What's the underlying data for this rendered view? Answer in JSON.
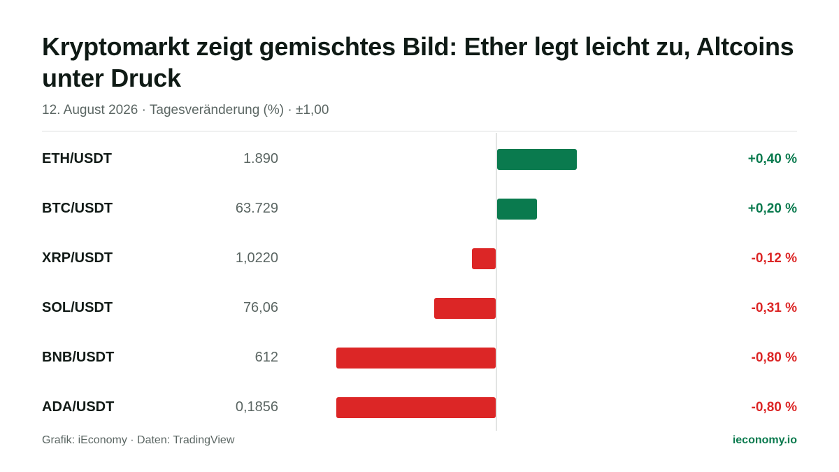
{
  "title": "Kryptomarkt zeigt gemischtes Bild: Ether legt leicht zu, Altcoins unter Druck",
  "subtitle": "12. August 2026 · Tagesveränderung (%) · ±1,00",
  "footer": {
    "source": "Grafik: iEconomy · Daten: TradingView",
    "brand": "ieconomy.io"
  },
  "colors": {
    "positive": "#0a7a4e",
    "negative": "#dc2626"
  },
  "chart_data": {
    "type": "bar",
    "orientation": "horizontal",
    "xlim": [
      -1,
      1
    ],
    "categories": [
      "ETH/USDT",
      "BTC/USDT",
      "XRP/USDT",
      "SOL/USDT",
      "BNB/USDT",
      "ADA/USDT"
    ],
    "prices": [
      "1.890",
      "63.729",
      "1,0220",
      "76,06",
      "612",
      "0,1856"
    ],
    "values": [
      0.4,
      0.2,
      -0.12,
      -0.31,
      -0.8,
      -0.8
    ],
    "value_labels": [
      "+0,40 %",
      "+0,20 %",
      "-0,12 %",
      "-0,31 %",
      "-0,80 %",
      "-0,80 %"
    ]
  }
}
